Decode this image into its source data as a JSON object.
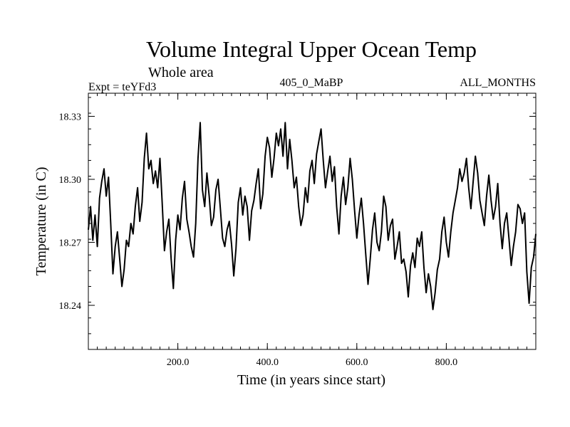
{
  "chart_data": {
    "type": "line",
    "title": "Volume Integral Upper Ocean Temp",
    "subtitle": "Whole area",
    "expt_label": "Expt = teYFd3",
    "center_label": "405_0_MaBP",
    "right_label": "ALL_MONTHS",
    "xlabel": "Time (in years since start)",
    "ylabel": "Temperature (in C)",
    "xlim": [
      0,
      1000
    ],
    "ylim": [
      18.219,
      18.341
    ],
    "x_ticks": [
      {
        "value": 200,
        "label": "200.0"
      },
      {
        "value": 400,
        "label": "400.0"
      },
      {
        "value": 600,
        "label": "600.0"
      },
      {
        "value": 800,
        "label": "800.0"
      }
    ],
    "y_ticks": [
      {
        "value": 18.24,
        "label": "18.24"
      },
      {
        "value": 18.27,
        "label": "18.27"
      },
      {
        "value": 18.3,
        "label": "18.30"
      },
      {
        "value": 18.33,
        "label": "18.33"
      }
    ],
    "x_minor_step": 20,
    "y_minor_step": 0.0075,
    "series": [
      {
        "name": "Temperature",
        "color": "#000000",
        "x": [
          0,
          5,
          10,
          15,
          20,
          25,
          30,
          35,
          40,
          45,
          50,
          55,
          60,
          65,
          70,
          75,
          80,
          85,
          90,
          95,
          100,
          105,
          110,
          115,
          120,
          125,
          130,
          135,
          140,
          145,
          150,
          155,
          160,
          165,
          170,
          175,
          180,
          185,
          190,
          195,
          200,
          205,
          210,
          215,
          220,
          225,
          230,
          235,
          240,
          245,
          250,
          255,
          260,
          265,
          270,
          275,
          280,
          285,
          290,
          295,
          300,
          305,
          310,
          315,
          320,
          325,
          330,
          335,
          340,
          345,
          350,
          355,
          360,
          365,
          370,
          375,
          380,
          385,
          390,
          395,
          400,
          405,
          410,
          415,
          420,
          425,
          430,
          435,
          440,
          445,
          450,
          455,
          460,
          465,
          470,
          475,
          480,
          485,
          490,
          495,
          500,
          505,
          510,
          515,
          520,
          525,
          530,
          535,
          540,
          545,
          550,
          555,
          560,
          565,
          570,
          575,
          580,
          585,
          590,
          595,
          600,
          605,
          610,
          615,
          620,
          625,
          630,
          635,
          640,
          645,
          650,
          655,
          660,
          665,
          670,
          675,
          680,
          685,
          690,
          695,
          700,
          705,
          710,
          715,
          720,
          725,
          730,
          735,
          740,
          745,
          750,
          755,
          760,
          765,
          770,
          775,
          780,
          785,
          790,
          795,
          800,
          805,
          810,
          815,
          820,
          825,
          830,
          835,
          840,
          845,
          850,
          855,
          860,
          865,
          870,
          875,
          880,
          885,
          890,
          895,
          900,
          905,
          910,
          915,
          920,
          925,
          930,
          935,
          940,
          945,
          950,
          955,
          960,
          965,
          970,
          975,
          980,
          985,
          990,
          995,
          1000
        ],
        "y": [
          18.276,
          18.287,
          18.271,
          18.283,
          18.268,
          18.291,
          18.299,
          18.305,
          18.292,
          18.301,
          18.279,
          18.255,
          18.268,
          18.275,
          18.262,
          18.249,
          18.257,
          18.271,
          18.268,
          18.279,
          18.274,
          18.287,
          18.296,
          18.28,
          18.289,
          18.31,
          18.322,
          18.305,
          18.309,
          18.298,
          18.304,
          18.296,
          18.31,
          18.289,
          18.266,
          18.275,
          18.281,
          18.262,
          18.248,
          18.271,
          18.283,
          18.276,
          18.291,
          18.299,
          18.281,
          18.275,
          18.268,
          18.263,
          18.279,
          18.31,
          18.327,
          18.295,
          18.287,
          18.303,
          18.292,
          18.278,
          18.282,
          18.295,
          18.3,
          18.286,
          18.272,
          18.268,
          18.276,
          18.28,
          18.269,
          18.254,
          18.267,
          18.289,
          18.296,
          18.283,
          18.292,
          18.287,
          18.271,
          18.285,
          18.29,
          18.298,
          18.305,
          18.286,
          18.293,
          18.311,
          18.32,
          18.315,
          18.301,
          18.31,
          18.322,
          18.316,
          18.324,
          18.311,
          18.327,
          18.305,
          18.319,
          18.309,
          18.296,
          18.301,
          18.287,
          18.278,
          18.283,
          18.296,
          18.289,
          18.304,
          18.309,
          18.298,
          18.312,
          18.318,
          18.324,
          18.309,
          18.296,
          18.304,
          18.311,
          18.299,
          18.306,
          18.287,
          18.274,
          18.292,
          18.301,
          18.288,
          18.296,
          18.31,
          18.3,
          18.285,
          18.272,
          18.283,
          18.291,
          18.279,
          18.264,
          18.25,
          18.262,
          18.276,
          18.284,
          18.27,
          18.266,
          18.275,
          18.292,
          18.287,
          18.271,
          18.278,
          18.281,
          18.262,
          18.268,
          18.275,
          18.26,
          18.262,
          18.256,
          18.244,
          18.259,
          18.265,
          18.258,
          18.272,
          18.268,
          18.275,
          18.258,
          18.246,
          18.255,
          18.249,
          18.238,
          18.246,
          18.257,
          18.262,
          18.275,
          18.282,
          18.27,
          18.263,
          18.275,
          18.284,
          18.29,
          18.296,
          18.305,
          18.299,
          18.303,
          18.31,
          18.296,
          18.286,
          18.299,
          18.311,
          18.303,
          18.29,
          18.284,
          18.278,
          18.292,
          18.302,
          18.29,
          18.281,
          18.287,
          18.298,
          18.279,
          18.267,
          18.279,
          18.284,
          18.272,
          18.259,
          18.268,
          18.275,
          18.288,
          18.286,
          18.279,
          18.284,
          18.256,
          18.241,
          18.258,
          18.263,
          18.274
        ]
      }
    ]
  }
}
